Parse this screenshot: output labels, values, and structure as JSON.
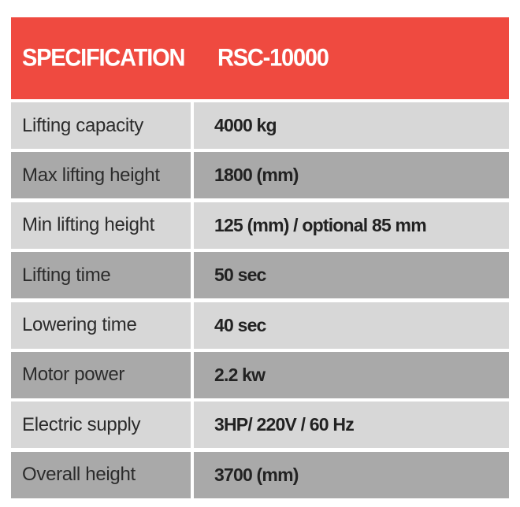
{
  "table": {
    "header": {
      "spec_label": "SPECIFICATION",
      "model": "RSC-10000",
      "color": "#ef4a40"
    },
    "rows": [
      {
        "label": "Lifting capacity",
        "value": "4000 kg"
      },
      {
        "label": "Max lifting height",
        "value": "1800 (mm)"
      },
      {
        "label": "Min lifting height",
        "value": "125 (mm) / optional 85 mm"
      },
      {
        "label": "Lifting time",
        "value": "50 sec"
      },
      {
        "label": "Lowering time",
        "value": "40 sec"
      },
      {
        "label": "Motor power",
        "value": "2.2 kw"
      },
      {
        "label": "Electric supply",
        "value": "3HP/ 220V / 60 Hz"
      },
      {
        "label": "Overall height",
        "value": "3700 (mm)"
      }
    ],
    "row_colors": {
      "light": "#d7d7d7",
      "dark": "#a9a9a9"
    }
  }
}
